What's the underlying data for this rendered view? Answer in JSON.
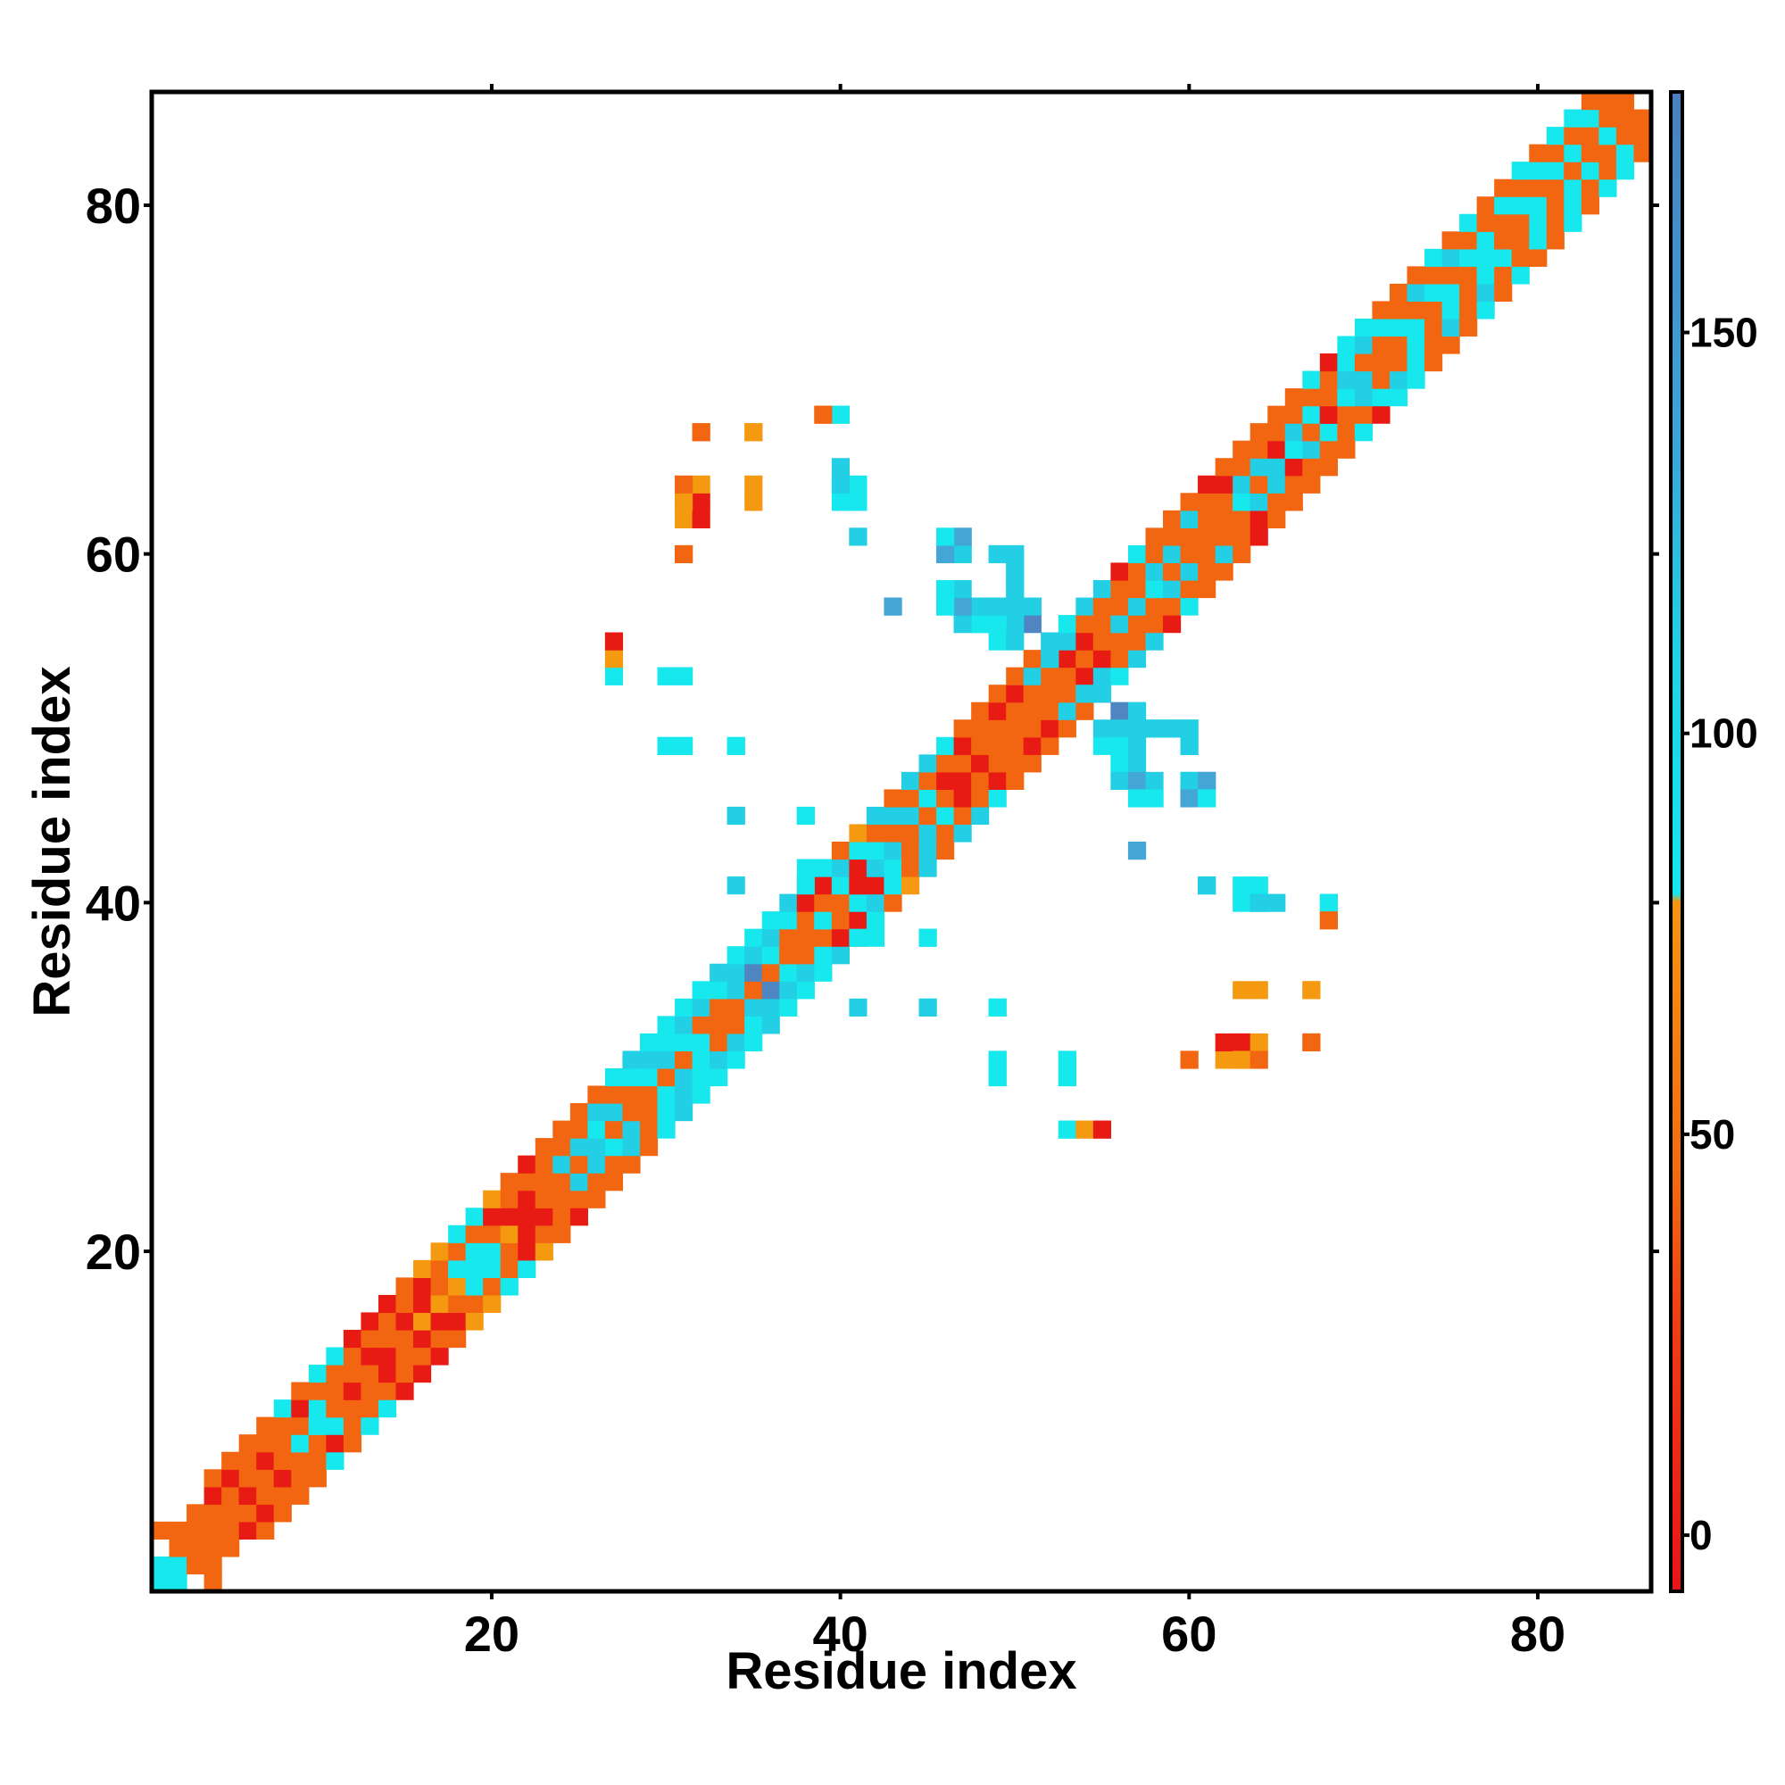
{
  "chart_data": {
    "type": "heatmap",
    "title": "",
    "xlabel": "Residue index",
    "ylabel": "Residue index",
    "xlim": [
      0.5,
      86.5
    ],
    "ylim": [
      0.5,
      86.5
    ],
    "x_ticks": [
      20,
      40,
      60,
      80
    ],
    "y_ticks": [
      20,
      40,
      60,
      80
    ],
    "x_tick_labels": [
      "20",
      "40",
      "60",
      "80"
    ],
    "y_tick_labels": [
      "20",
      "40",
      "60",
      "80"
    ],
    "grid": false,
    "colorbar": {
      "range": [
        -7,
        180
      ],
      "ticks": [
        0,
        50,
        100,
        150
      ],
      "tick_labels": [
        "0",
        "50",
        "100",
        "150"
      ],
      "stops": [
        {
          "value": -7,
          "color": "#e8141a"
        },
        {
          "value": 28,
          "color": "#f23f14"
        },
        {
          "value": 45,
          "color": "#f26b12"
        },
        {
          "value": 79,
          "color": "#f59510"
        },
        {
          "value": 80,
          "color": "#17e6ee"
        },
        {
          "value": 110,
          "color": "#1ed3e6"
        },
        {
          "value": 135,
          "color": "#3aa7d8"
        },
        {
          "value": 180,
          "color": "#4a80c0"
        },
        {
          "value": 181,
          "color": "#ffffff"
        }
      ]
    },
    "palette": {
      "R": "#e81a14",
      "O": "#f26612",
      "A": "#f59a10",
      "C": "#16e8ee",
      "T": "#22cfe4",
      "B": "#43a6d6",
      "D": "#4f86c1"
    },
    "diagonal_band": [
      {
        "i": 1,
        "row": "CC.O"
      },
      {
        "i": 2,
        "row": "COO"
      },
      {
        "i": 3,
        "row": "OOO"
      },
      {
        "i": 4,
        "row": "OORO"
      },
      {
        "i": 5,
        "row": "OORO"
      },
      {
        "i": 6,
        "row": "ROOO"
      },
      {
        "i": 7,
        "row": "OROO"
      },
      {
        "i": 8,
        "row": "OOOC"
      },
      {
        "i": 9,
        "row": "CORO"
      },
      {
        "i": 10,
        "row": "CCOC"
      },
      {
        "i": 11,
        "row": "OOOC"
      },
      {
        "i": 12,
        "row": "ROOR"
      },
      {
        "i": 13,
        "row": "OROR"
      },
      {
        "i": 14,
        "row": "ROOR"
      },
      {
        "i": 15,
        "row": "OROO"
      },
      {
        "i": 16,
        "row": "ARRA"
      },
      {
        "i": 17,
        "row": "AOOA"
      },
      {
        "i": 18,
        "row": "ACOC"
      },
      {
        "i": 19,
        "row": "CCOC"
      },
      {
        "i": 20,
        "row": "CORA"
      },
      {
        "i": 21,
        "row": "AROO"
      },
      {
        "i": 22,
        "row": "RROR"
      },
      {
        "i": 23,
        "row": "OOOO"
      },
      {
        "i": 24,
        "row": "OTOO"
      },
      {
        "i": 25,
        "row": "OTOO"
      },
      {
        "i": 26,
        "row": "TCTO"
      },
      {
        "i": 27,
        "row": "OTOC"
      },
      {
        "i": 28,
        "row": "OOCT"
      },
      {
        "i": 29,
        "row": "OCTC"
      },
      {
        "i": 30,
        "row": "OTCC"
      },
      {
        "i": 31,
        "row": "OCTC"
      },
      {
        "i": 32,
        "row": "COTC"
      },
      {
        "i": 33,
        "row": "OOCT"
      },
      {
        "i": 34,
        "row": "OTTC"
      },
      {
        "i": 35,
        "row": "ODTC"
      },
      {
        "i": 36,
        "row": "OCTC"
      },
      {
        "i": 37,
        "row": "OOCT"
      },
      {
        "i": 38,
        "row": "OORO"
      },
      {
        "i": 39,
        "row": "CORC"
      },
      {
        "i": 40,
        "row": "OCTO"
      },
      {
        "i": 41,
        "row": "RRCA"
      },
      {
        "i": 42,
        "row": "TCOT"
      },
      {
        "i": 43,
        "row": "TOTO"
      },
      {
        "i": 44,
        "row": "OTOT"
      },
      {
        "i": 45,
        "row": "OCOT"
      },
      {
        "i": 46,
        "row": "OROC"
      },
      {
        "i": 47,
        "row": "RORO"
      },
      {
        "i": 48,
        "row": "ROOO"
      },
      {
        "i": 49,
        "row": "OORO"
      },
      {
        "i": 50,
        "row": "OORO"
      },
      {
        "i": 51,
        "row": "OOTO"
      },
      {
        "i": 52,
        "row": "OOTD"
      },
      {
        "i": 53,
        "row": "ORTC"
      },
      {
        "i": 54,
        "row": "OROT"
      },
      {
        "i": 55,
        "row": "OOOT"
      },
      {
        "i": 56,
        "row": "TOOR"
      },
      {
        "i": 57,
        "row": "TOOC"
      },
      {
        "i": 58,
        "row": "CTOO"
      },
      {
        "i": 59,
        "row": "OTOO"
      },
      {
        "i": 60,
        "row": "OOTO"
      },
      {
        "i": 61,
        "row": "OOOR"
      },
      {
        "i": 62,
        "row": "OORO"
      },
      {
        "i": 63,
        "row": "CTOO"
      },
      {
        "i": 64,
        "row": "OTOO"
      },
      {
        "i": 65,
        "row": "TROO"
      },
      {
        "i": 66,
        "row": "CTOO"
      },
      {
        "i": 67,
        "row": "OCOC"
      },
      {
        "i": 68,
        "row": "ROOR"
      },
      {
        "i": 69,
        "row": "CTCC"
      },
      {
        "i": 70,
        "row": "TOTC"
      },
      {
        "i": 71,
        "row": "OOCO"
      },
      {
        "i": 72,
        "row": "OCOO"
      },
      {
        "i": 73,
        "row": "COTO"
      },
      {
        "i": 74,
        "row": "OCOC"
      },
      {
        "i": 75,
        "row": "COTO"
      },
      {
        "i": 76,
        "row": "OCOC"
      },
      {
        "i": 77,
        "row": "CCOO"
      },
      {
        "i": 78,
        "row": "OOCO"
      },
      {
        "i": 79,
        "row": "OCOC"
      },
      {
        "i": 80,
        "row": "COCO"
      },
      {
        "i": 81,
        "row": "OCOC"
      },
      {
        "i": 82,
        "row": "OCOC"
      },
      {
        "i": 83,
        "row": "OOCO"
      },
      {
        "i": 84,
        "row": "COO"
      },
      {
        "i": 85,
        "row": "OO"
      }
    ],
    "contacts": [
      {
        "x": 31,
        "y": 63,
        "c": "O"
      },
      {
        "x": 32,
        "y": 63,
        "c": "A"
      },
      {
        "x": 31,
        "y": 62,
        "c": "A"
      },
      {
        "x": 32,
        "y": 62,
        "c": "R"
      },
      {
        "x": 32,
        "y": 67,
        "c": "O"
      },
      {
        "x": 35,
        "y": 67,
        "c": "A"
      },
      {
        "x": 35,
        "y": 63,
        "c": "A"
      },
      {
        "x": 31,
        "y": 60,
        "c": "O"
      },
      {
        "x": 39,
        "y": 68,
        "c": "O"
      },
      {
        "x": 40,
        "y": 68,
        "c": "C"
      },
      {
        "x": 40,
        "y": 64,
        "c": "C"
      },
      {
        "x": 40,
        "y": 63,
        "c": "C"
      },
      {
        "x": 41,
        "y": 63,
        "c": "C"
      },
      {
        "x": 41,
        "y": 61,
        "c": "T"
      },
      {
        "x": 27,
        "y": 55,
        "c": "R"
      },
      {
        "x": 27,
        "y": 54,
        "c": "A"
      },
      {
        "x": 27,
        "y": 53,
        "c": "C"
      },
      {
        "x": 30,
        "y": 53,
        "c": "C"
      },
      {
        "x": 31,
        "y": 53,
        "c": "C"
      },
      {
        "x": 30,
        "y": 49,
        "c": "C"
      },
      {
        "x": 31,
        "y": 49,
        "c": "C"
      },
      {
        "x": 34,
        "y": 49,
        "c": "C"
      },
      {
        "x": 34,
        "y": 45,
        "c": "C"
      },
      {
        "x": 38,
        "y": 45,
        "c": "C"
      },
      {
        "x": 43,
        "y": 57,
        "c": "B"
      },
      {
        "x": 46,
        "y": 61,
        "c": "C"
      },
      {
        "x": 47,
        "y": 61,
        "c": "D"
      },
      {
        "x": 46,
        "y": 60,
        "c": "B"
      },
      {
        "x": 47,
        "y": 60,
        "c": "C"
      },
      {
        "x": 49,
        "y": 60,
        "c": "T"
      },
      {
        "x": 50,
        "y": 60,
        "c": "T"
      },
      {
        "x": 50,
        "y": 59,
        "c": "C"
      },
      {
        "x": 46,
        "y": 58,
        "c": "C"
      },
      {
        "x": 50,
        "y": 58,
        "c": "C"
      },
      {
        "x": 46,
        "y": 57,
        "c": "T"
      },
      {
        "x": 47,
        "y": 57,
        "c": "D"
      },
      {
        "x": 48,
        "y": 57,
        "c": "T"
      },
      {
        "x": 49,
        "y": 57,
        "c": "T"
      },
      {
        "x": 50,
        "y": 57,
        "c": "T"
      },
      {
        "x": 51,
        "y": 57,
        "c": "T"
      },
      {
        "x": 47,
        "y": 56,
        "c": "T"
      },
      {
        "x": 48,
        "y": 56,
        "c": "C"
      },
      {
        "x": 49,
        "y": 56,
        "c": "T"
      },
      {
        "x": 50,
        "y": 56,
        "c": "T"
      },
      {
        "x": 51,
        "y": 56,
        "c": "T"
      },
      {
        "x": 49,
        "y": 55,
        "c": "C"
      },
      {
        "x": 50,
        "y": 55,
        "c": "T"
      },
      {
        "x": 54,
        "y": 52,
        "c": "T"
      },
      {
        "x": 55,
        "y": 52,
        "c": "T"
      },
      {
        "x": 56,
        "y": 51,
        "c": "D"
      },
      {
        "x": 57,
        "y": 51,
        "c": "T"
      },
      {
        "x": 56,
        "y": 50,
        "c": "T"
      },
      {
        "x": 57,
        "y": 50,
        "c": "T"
      },
      {
        "x": 58,
        "y": 50,
        "c": "T"
      },
      {
        "x": 59,
        "y": 50,
        "c": "T"
      },
      {
        "x": 60,
        "y": 50,
        "c": "T"
      },
      {
        "x": 56,
        "y": 49,
        "c": "C"
      },
      {
        "x": 57,
        "y": 49,
        "c": "T"
      },
      {
        "x": 60,
        "y": 49,
        "c": "T"
      },
      {
        "x": 56,
        "y": 48,
        "c": "C"
      },
      {
        "x": 57,
        "y": 48,
        "c": "T"
      },
      {
        "x": 56,
        "y": 47,
        "c": "T"
      },
      {
        "x": 57,
        "y": 47,
        "c": "B"
      },
      {
        "x": 58,
        "y": 47,
        "c": "T"
      },
      {
        "x": 60,
        "y": 47,
        "c": "T"
      },
      {
        "x": 61,
        "y": 47,
        "c": "B"
      },
      {
        "x": 57,
        "y": 46,
        "c": "C"
      },
      {
        "x": 58,
        "y": 46,
        "c": "C"
      },
      {
        "x": 60,
        "y": 46,
        "c": "B"
      },
      {
        "x": 61,
        "y": 46,
        "c": "C"
      },
      {
        "x": 57,
        "y": 43,
        "c": "B"
      },
      {
        "x": 61,
        "y": 41,
        "c": "T"
      },
      {
        "x": 64,
        "y": 41,
        "c": "C"
      },
      {
        "x": 64,
        "y": 40,
        "c": "T"
      },
      {
        "x": 65,
        "y": 40,
        "c": "T"
      },
      {
        "x": 68,
        "y": 40,
        "c": "C"
      },
      {
        "x": 68,
        "y": 39,
        "c": "O"
      },
      {
        "x": 41,
        "y": 38,
        "c": "C"
      },
      {
        "x": 42,
        "y": 38,
        "c": "C"
      },
      {
        "x": 45,
        "y": 38,
        "c": "C"
      },
      {
        "x": 41,
        "y": 34,
        "c": "T"
      },
      {
        "x": 45,
        "y": 34,
        "c": "T"
      },
      {
        "x": 49,
        "y": 34,
        "c": "C"
      },
      {
        "x": 64,
        "y": 35,
        "c": "A"
      },
      {
        "x": 67,
        "y": 35,
        "c": "A"
      },
      {
        "x": 63,
        "y": 32,
        "c": "R"
      },
      {
        "x": 64,
        "y": 32,
        "c": "A"
      },
      {
        "x": 67,
        "y": 32,
        "c": "O"
      },
      {
        "x": 60,
        "y": 31,
        "c": "O"
      },
      {
        "x": 63,
        "y": 31,
        "c": "A"
      },
      {
        "x": 64,
        "y": 31,
        "c": "O"
      },
      {
        "x": 49,
        "y": 31,
        "c": "C"
      },
      {
        "x": 53,
        "y": 31,
        "c": "C"
      },
      {
        "x": 49,
        "y": 30,
        "c": "C"
      },
      {
        "x": 53,
        "y": 30,
        "c": "C"
      },
      {
        "x": 53,
        "y": 27,
        "c": "C"
      },
      {
        "x": 54,
        "y": 27,
        "c": "A"
      },
      {
        "x": 55,
        "y": 27,
        "c": "R"
      }
    ]
  }
}
